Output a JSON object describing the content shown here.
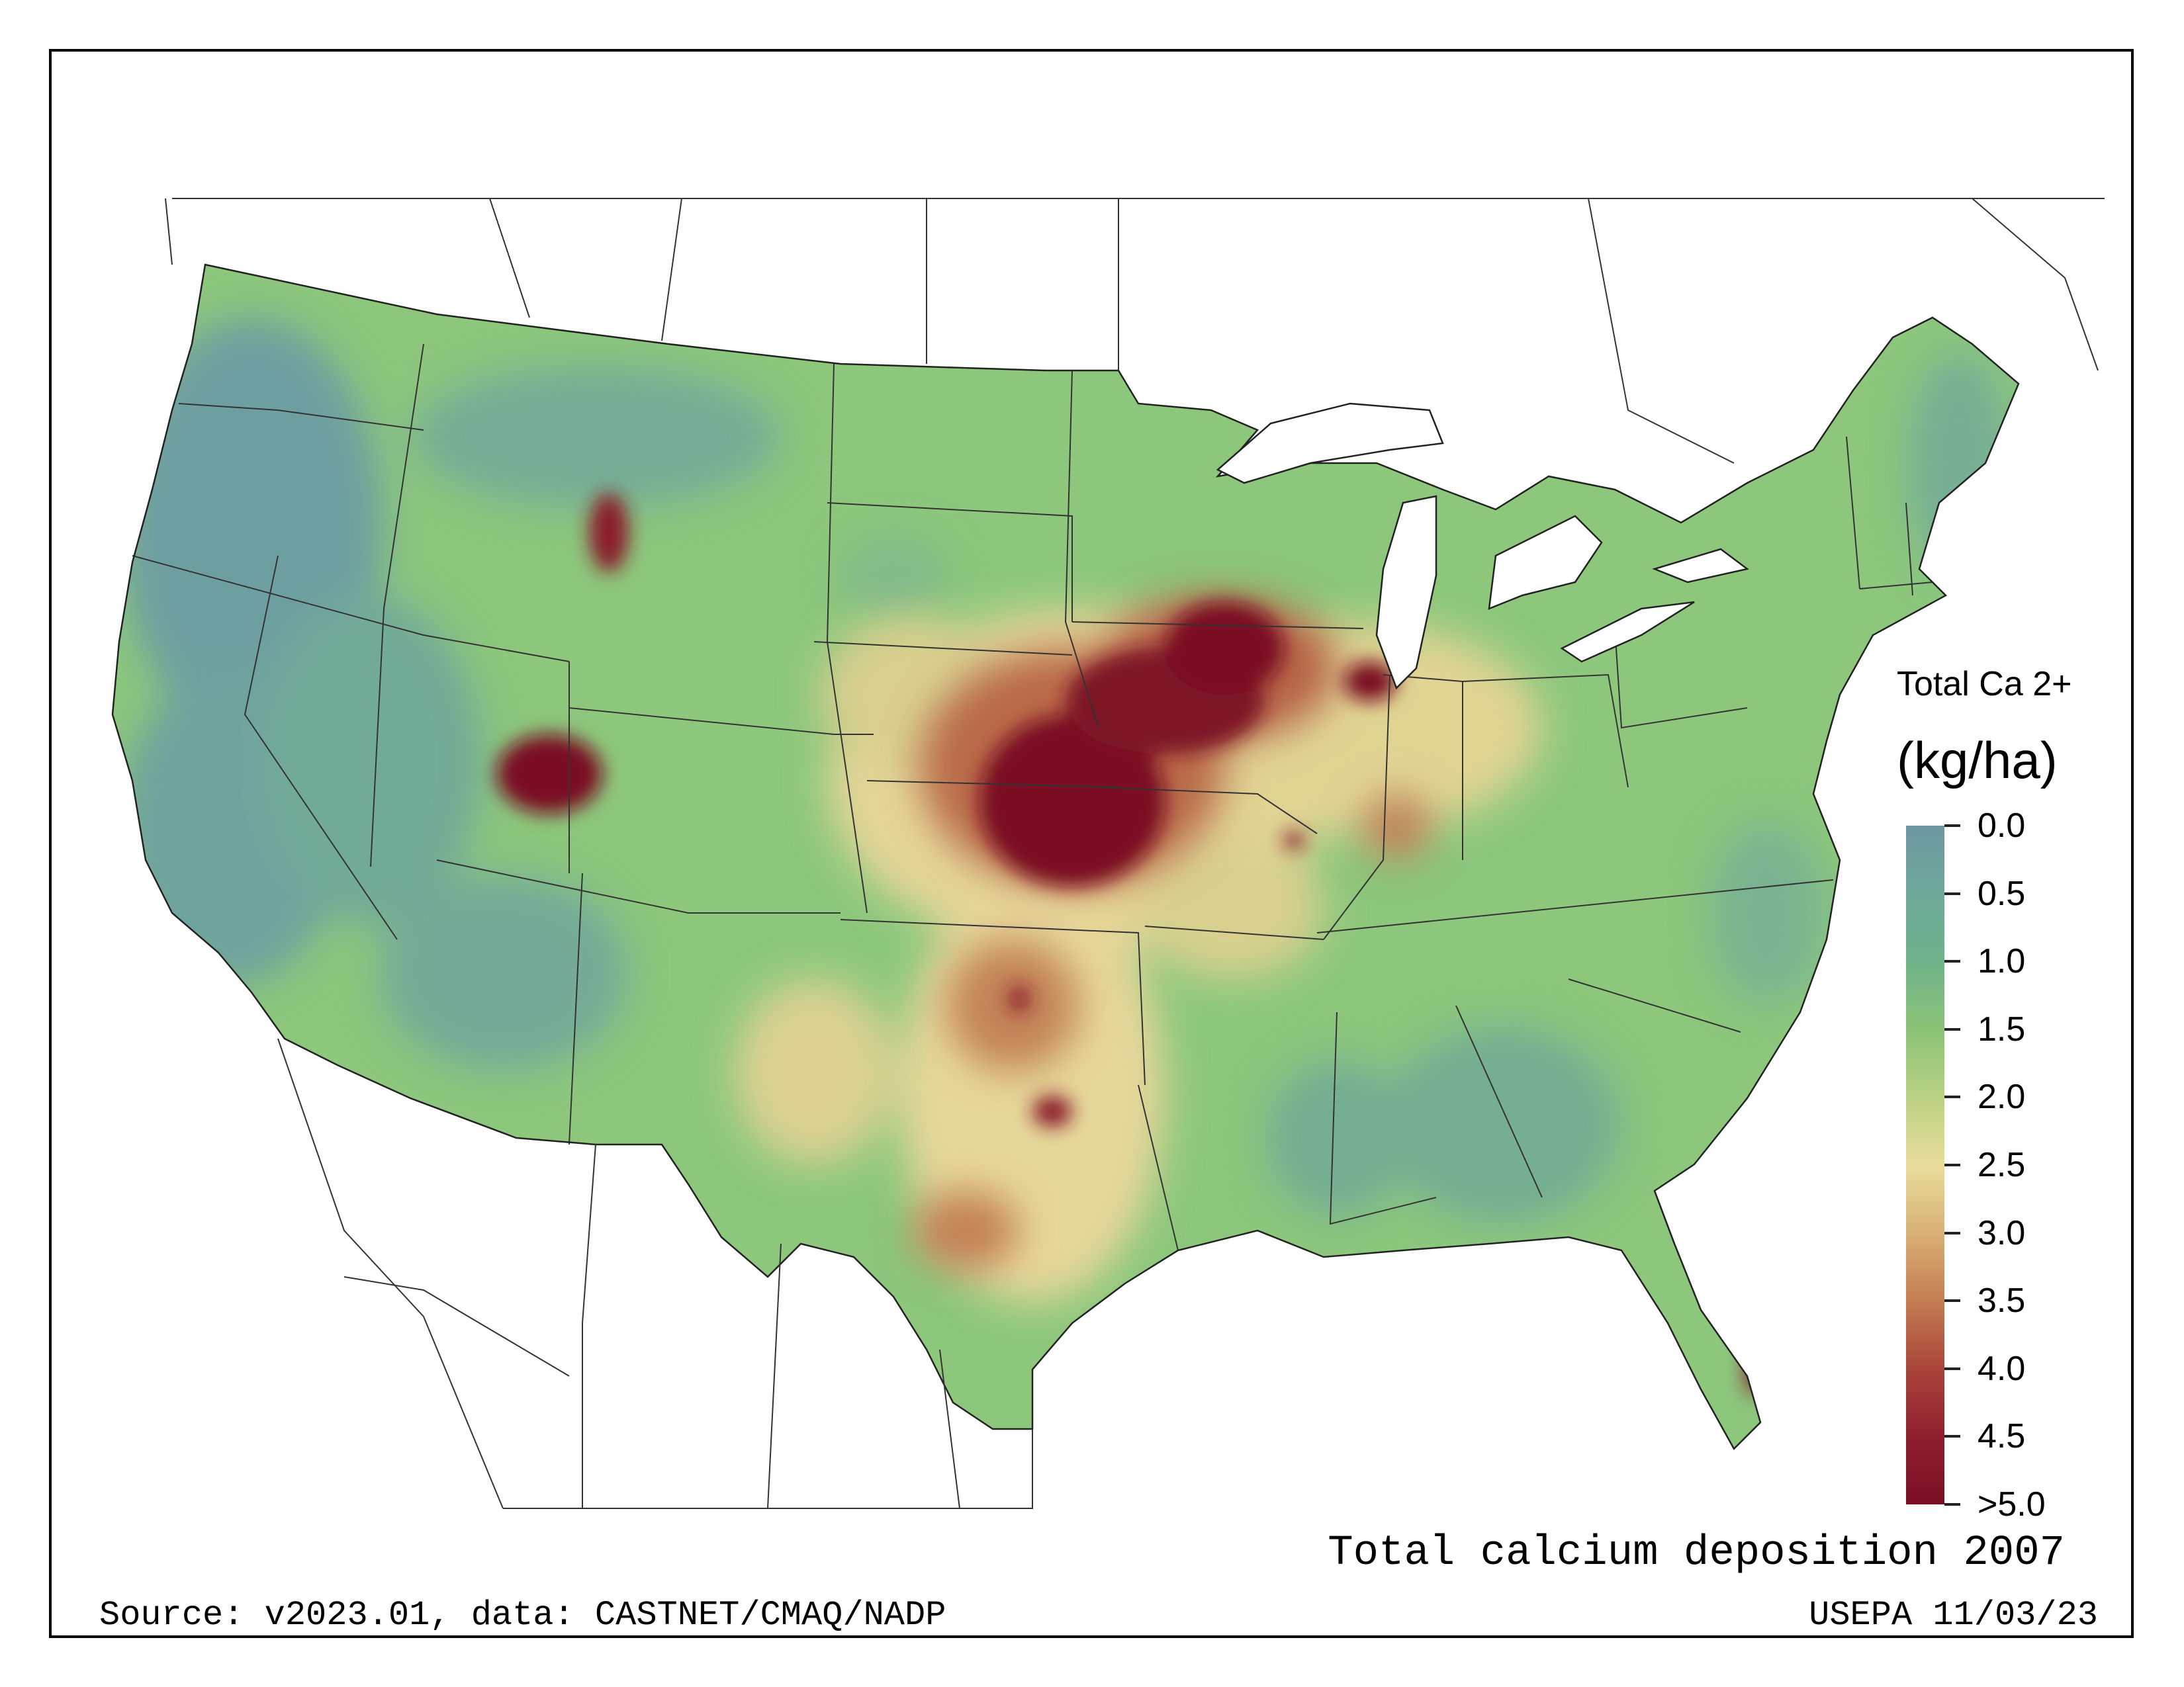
{
  "title": "Total calcium deposition 2007",
  "legend": {
    "title": "Total Ca 2+",
    "unit": "(kg/ha)",
    "ticks": [
      "0.0",
      "0.5",
      "1.0",
      "1.5",
      "2.0",
      "2.5",
      "3.0",
      "3.5",
      "4.0",
      "4.5",
      ">5.0"
    ],
    "colors": [
      "#6e98a2",
      "#6ea89a",
      "#6fb38a",
      "#8ac276",
      "#b9d183",
      "#e9dd9c",
      "#d8b075",
      "#c47d52",
      "#a9453a",
      "#8f1f2f",
      "#7a0f24"
    ]
  },
  "footer": {
    "source": "Source: v2023.01, data: CASTNET/CMAQ/NADP",
    "agency": "USEPA 11/03/23"
  },
  "map": {
    "region": "Contiguous United States",
    "scale_type": "continuous",
    "value_range": [
      0.0,
      5.0
    ],
    "high_regions": [
      "Iowa",
      "Nebraska",
      "Kansas",
      "Utah",
      "northern Texas"
    ]
  }
}
